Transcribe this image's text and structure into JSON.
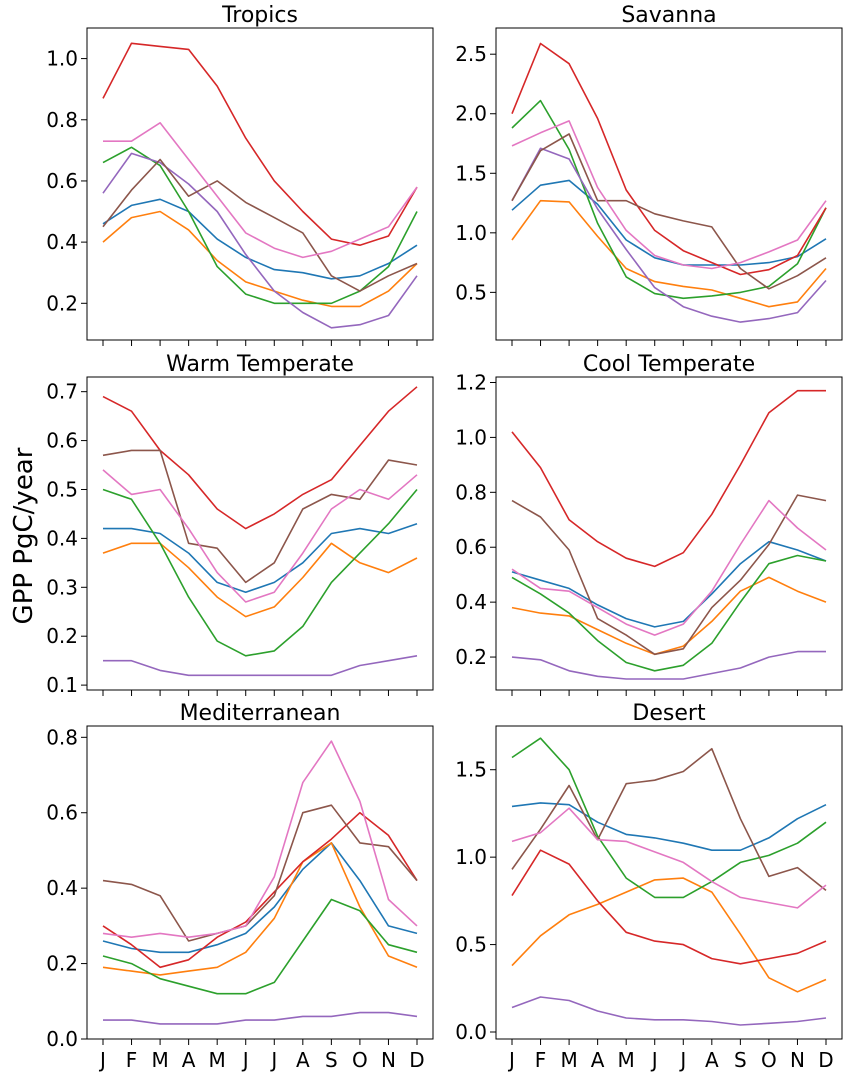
{
  "figure": {
    "ylabel": "GPP PgC/year",
    "months": [
      "J",
      "F",
      "M",
      "A",
      "M",
      "J",
      "J",
      "A",
      "S",
      "O",
      "N",
      "D"
    ],
    "series_colors": [
      "#1f77b4",
      "#ff7f0e",
      "#2ca02c",
      "#d62728",
      "#9467bd",
      "#8c564b",
      "#e377c2"
    ]
  },
  "chart_data": [
    {
      "type": "line",
      "title": "Tropics",
      "ylim": [
        0.08,
        1.1
      ],
      "yticks": [
        0.2,
        0.4,
        0.6,
        0.8,
        1.0
      ],
      "ytick_labels": [
        "0.2",
        "0.4",
        "0.6",
        "0.8",
        "1.0"
      ],
      "show_xtick_labels": false,
      "series": [
        {
          "color": "#1f77b4",
          "values": [
            0.46,
            0.52,
            0.54,
            0.5,
            0.41,
            0.35,
            0.31,
            0.3,
            0.28,
            0.29,
            0.33,
            0.39
          ]
        },
        {
          "color": "#ff7f0e",
          "values": [
            0.4,
            0.48,
            0.5,
            0.44,
            0.34,
            0.27,
            0.24,
            0.21,
            0.19,
            0.19,
            0.24,
            0.33
          ]
        },
        {
          "color": "#2ca02c",
          "values": [
            0.66,
            0.71,
            0.65,
            0.5,
            0.32,
            0.23,
            0.2,
            0.2,
            0.2,
            0.24,
            0.32,
            0.5
          ]
        },
        {
          "color": "#d62728",
          "values": [
            0.87,
            1.05,
            1.04,
            1.03,
            0.91,
            0.74,
            0.6,
            0.5,
            0.41,
            0.39,
            0.42,
            0.58
          ]
        },
        {
          "color": "#9467bd",
          "values": [
            0.56,
            0.69,
            0.66,
            0.59,
            0.5,
            0.36,
            0.24,
            0.17,
            0.12,
            0.13,
            0.16,
            0.29
          ]
        },
        {
          "color": "#8c564b",
          "values": [
            0.45,
            0.57,
            0.67,
            0.55,
            0.6,
            0.53,
            0.48,
            0.43,
            0.29,
            0.24,
            0.29,
            0.33
          ]
        },
        {
          "color": "#e377c2",
          "values": [
            0.73,
            0.73,
            0.79,
            0.67,
            0.55,
            0.43,
            0.38,
            0.35,
            0.37,
            0.41,
            0.45,
            0.58
          ]
        }
      ]
    },
    {
      "type": "line",
      "title": "Savanna",
      "ylim": [
        0.1,
        2.72
      ],
      "yticks": [
        0.5,
        1.0,
        1.5,
        2.0,
        2.5
      ],
      "ytick_labels": [
        "0.5",
        "1.0",
        "1.5",
        "2.0",
        "2.5"
      ],
      "show_xtick_labels": false,
      "series": [
        {
          "color": "#1f77b4",
          "values": [
            1.19,
            1.4,
            1.44,
            1.24,
            0.94,
            0.79,
            0.73,
            0.73,
            0.73,
            0.75,
            0.8,
            0.95
          ]
        },
        {
          "color": "#ff7f0e",
          "values": [
            0.94,
            1.27,
            1.26,
            0.97,
            0.7,
            0.59,
            0.55,
            0.52,
            0.45,
            0.38,
            0.42,
            0.7
          ]
        },
        {
          "color": "#2ca02c",
          "values": [
            1.88,
            2.11,
            1.7,
            1.08,
            0.63,
            0.49,
            0.45,
            0.47,
            0.5,
            0.55,
            0.74,
            1.21
          ]
        },
        {
          "color": "#d62728",
          "values": [
            2.0,
            2.59,
            2.42,
            1.96,
            1.36,
            1.02,
            0.85,
            0.75,
            0.65,
            0.69,
            0.81,
            1.21
          ]
        },
        {
          "color": "#9467bd",
          "values": [
            1.27,
            1.71,
            1.62,
            1.2,
            0.86,
            0.54,
            0.38,
            0.3,
            0.25,
            0.28,
            0.33,
            0.6
          ]
        },
        {
          "color": "#8c564b",
          "values": [
            1.27,
            1.69,
            1.83,
            1.27,
            1.27,
            1.16,
            1.1,
            1.05,
            0.7,
            0.53,
            0.64,
            0.79
          ]
        },
        {
          "color": "#e377c2",
          "values": [
            1.73,
            1.84,
            1.94,
            1.38,
            1.02,
            0.81,
            0.73,
            0.7,
            0.75,
            0.84,
            0.94,
            1.27
          ]
        }
      ]
    },
    {
      "type": "line",
      "title": "Warm Temperate",
      "ylim": [
        0.09,
        0.73
      ],
      "yticks": [
        0.1,
        0.2,
        0.3,
        0.4,
        0.5,
        0.6,
        0.7
      ],
      "ytick_labels": [
        "0.1",
        "0.2",
        "0.3",
        "0.4",
        "0.5",
        "0.6",
        "0.7"
      ],
      "show_xtick_labels": false,
      "series": [
        {
          "color": "#1f77b4",
          "values": [
            0.42,
            0.42,
            0.41,
            0.37,
            0.31,
            0.29,
            0.31,
            0.35,
            0.41,
            0.42,
            0.41,
            0.43
          ]
        },
        {
          "color": "#ff7f0e",
          "values": [
            0.37,
            0.39,
            0.39,
            0.34,
            0.28,
            0.24,
            0.26,
            0.32,
            0.39,
            0.35,
            0.33,
            0.36
          ]
        },
        {
          "color": "#2ca02c",
          "values": [
            0.5,
            0.48,
            0.39,
            0.28,
            0.19,
            0.16,
            0.17,
            0.22,
            0.31,
            0.37,
            0.43,
            0.5
          ]
        },
        {
          "color": "#d62728",
          "values": [
            0.69,
            0.66,
            0.58,
            0.53,
            0.46,
            0.42,
            0.45,
            0.49,
            0.52,
            0.59,
            0.66,
            0.71
          ]
        },
        {
          "color": "#9467bd",
          "values": [
            0.15,
            0.15,
            0.13,
            0.12,
            0.12,
            0.12,
            0.12,
            0.12,
            0.12,
            0.14,
            0.15,
            0.16
          ]
        },
        {
          "color": "#8c564b",
          "values": [
            0.57,
            0.58,
            0.58,
            0.39,
            0.38,
            0.31,
            0.35,
            0.46,
            0.49,
            0.48,
            0.56,
            0.55
          ]
        },
        {
          "color": "#e377c2",
          "values": [
            0.54,
            0.49,
            0.5,
            0.42,
            0.33,
            0.27,
            0.29,
            0.37,
            0.46,
            0.5,
            0.48,
            0.53
          ]
        }
      ]
    },
    {
      "type": "line",
      "title": "Cool Temperate",
      "ylim": [
        0.08,
        1.22
      ],
      "yticks": [
        0.2,
        0.4,
        0.6,
        0.8,
        1.0,
        1.2
      ],
      "ytick_labels": [
        "0.2",
        "0.4",
        "0.6",
        "0.8",
        "1.0",
        "1.2"
      ],
      "show_xtick_labels": false,
      "series": [
        {
          "color": "#1f77b4",
          "values": [
            0.51,
            0.48,
            0.45,
            0.39,
            0.34,
            0.31,
            0.33,
            0.43,
            0.54,
            0.62,
            0.59,
            0.55
          ]
        },
        {
          "color": "#ff7f0e",
          "values": [
            0.38,
            0.36,
            0.35,
            0.3,
            0.25,
            0.21,
            0.24,
            0.33,
            0.44,
            0.49,
            0.44,
            0.4
          ]
        },
        {
          "color": "#2ca02c",
          "values": [
            0.49,
            0.43,
            0.36,
            0.26,
            0.18,
            0.15,
            0.17,
            0.25,
            0.4,
            0.54,
            0.57,
            0.55
          ]
        },
        {
          "color": "#d62728",
          "values": [
            1.02,
            0.89,
            0.7,
            0.62,
            0.56,
            0.53,
            0.58,
            0.72,
            0.9,
            1.09,
            1.17,
            1.17
          ]
        },
        {
          "color": "#9467bd",
          "values": [
            0.2,
            0.19,
            0.15,
            0.13,
            0.12,
            0.12,
            0.12,
            0.14,
            0.16,
            0.2,
            0.22,
            0.22
          ]
        },
        {
          "color": "#8c564b",
          "values": [
            0.77,
            0.71,
            0.59,
            0.34,
            0.28,
            0.21,
            0.23,
            0.38,
            0.48,
            0.61,
            0.79,
            0.77
          ]
        },
        {
          "color": "#e377c2",
          "values": [
            0.52,
            0.45,
            0.44,
            0.38,
            0.32,
            0.28,
            0.32,
            0.44,
            0.61,
            0.77,
            0.67,
            0.59
          ]
        }
      ]
    },
    {
      "type": "line",
      "title": "Mediterranean",
      "ylim": [
        0.0,
        0.83
      ],
      "yticks": [
        0.0,
        0.2,
        0.4,
        0.6,
        0.8
      ],
      "ytick_labels": [
        "0.0",
        "0.2",
        "0.4",
        "0.6",
        "0.8"
      ],
      "show_xtick_labels": true,
      "series": [
        {
          "color": "#1f77b4",
          "values": [
            0.26,
            0.24,
            0.23,
            0.23,
            0.25,
            0.28,
            0.35,
            0.45,
            0.52,
            0.42,
            0.3,
            0.28
          ]
        },
        {
          "color": "#ff7f0e",
          "values": [
            0.19,
            0.18,
            0.17,
            0.18,
            0.19,
            0.23,
            0.32,
            0.47,
            0.52,
            0.35,
            0.22,
            0.19
          ]
        },
        {
          "color": "#2ca02c",
          "values": [
            0.22,
            0.2,
            0.16,
            0.14,
            0.12,
            0.12,
            0.15,
            0.26,
            0.37,
            0.34,
            0.25,
            0.23
          ]
        },
        {
          "color": "#d62728",
          "values": [
            0.3,
            0.25,
            0.19,
            0.21,
            0.27,
            0.31,
            0.39,
            0.47,
            0.53,
            0.6,
            0.54,
            0.42
          ]
        },
        {
          "color": "#9467bd",
          "values": [
            0.05,
            0.05,
            0.04,
            0.04,
            0.04,
            0.05,
            0.05,
            0.06,
            0.06,
            0.07,
            0.07,
            0.06
          ]
        },
        {
          "color": "#8c564b",
          "values": [
            0.42,
            0.41,
            0.38,
            0.26,
            0.28,
            0.3,
            0.38,
            0.6,
            0.62,
            0.52,
            0.51,
            0.42
          ]
        },
        {
          "color": "#e377c2",
          "values": [
            0.28,
            0.27,
            0.28,
            0.27,
            0.28,
            0.3,
            0.43,
            0.68,
            0.79,
            0.63,
            0.37,
            0.3
          ]
        }
      ]
    },
    {
      "type": "line",
      "title": "Desert",
      "ylim": [
        -0.04,
        1.75
      ],
      "yticks": [
        0.0,
        0.5,
        1.0,
        1.5
      ],
      "ytick_labels": [
        "0.0",
        "0.5",
        "1.0",
        "1.5"
      ],
      "show_xtick_labels": true,
      "series": [
        {
          "color": "#1f77b4",
          "values": [
            1.29,
            1.31,
            1.3,
            1.2,
            1.13,
            1.11,
            1.08,
            1.04,
            1.04,
            1.11,
            1.22,
            1.3
          ]
        },
        {
          "color": "#ff7f0e",
          "values": [
            0.38,
            0.55,
            0.67,
            0.73,
            0.8,
            0.87,
            0.88,
            0.8,
            0.56,
            0.31,
            0.23,
            0.3
          ]
        },
        {
          "color": "#2ca02c",
          "values": [
            1.57,
            1.68,
            1.5,
            1.12,
            0.88,
            0.77,
            0.77,
            0.86,
            0.97,
            1.01,
            1.08,
            1.2
          ]
        },
        {
          "color": "#d62728",
          "values": [
            0.78,
            1.04,
            0.96,
            0.75,
            0.57,
            0.52,
            0.5,
            0.42,
            0.39,
            0.42,
            0.45,
            0.52
          ]
        },
        {
          "color": "#9467bd",
          "values": [
            0.14,
            0.2,
            0.18,
            0.12,
            0.08,
            0.07,
            0.07,
            0.06,
            0.04,
            0.05,
            0.06,
            0.08
          ]
        },
        {
          "color": "#8c564b",
          "values": [
            0.93,
            1.16,
            1.41,
            1.1,
            1.42,
            1.44,
            1.49,
            1.62,
            1.22,
            0.89,
            0.94,
            0.81
          ]
        },
        {
          "color": "#e377c2",
          "values": [
            1.09,
            1.14,
            1.28,
            1.1,
            1.09,
            1.03,
            0.97,
            0.86,
            0.77,
            0.74,
            0.71,
            0.84
          ]
        }
      ]
    }
  ]
}
